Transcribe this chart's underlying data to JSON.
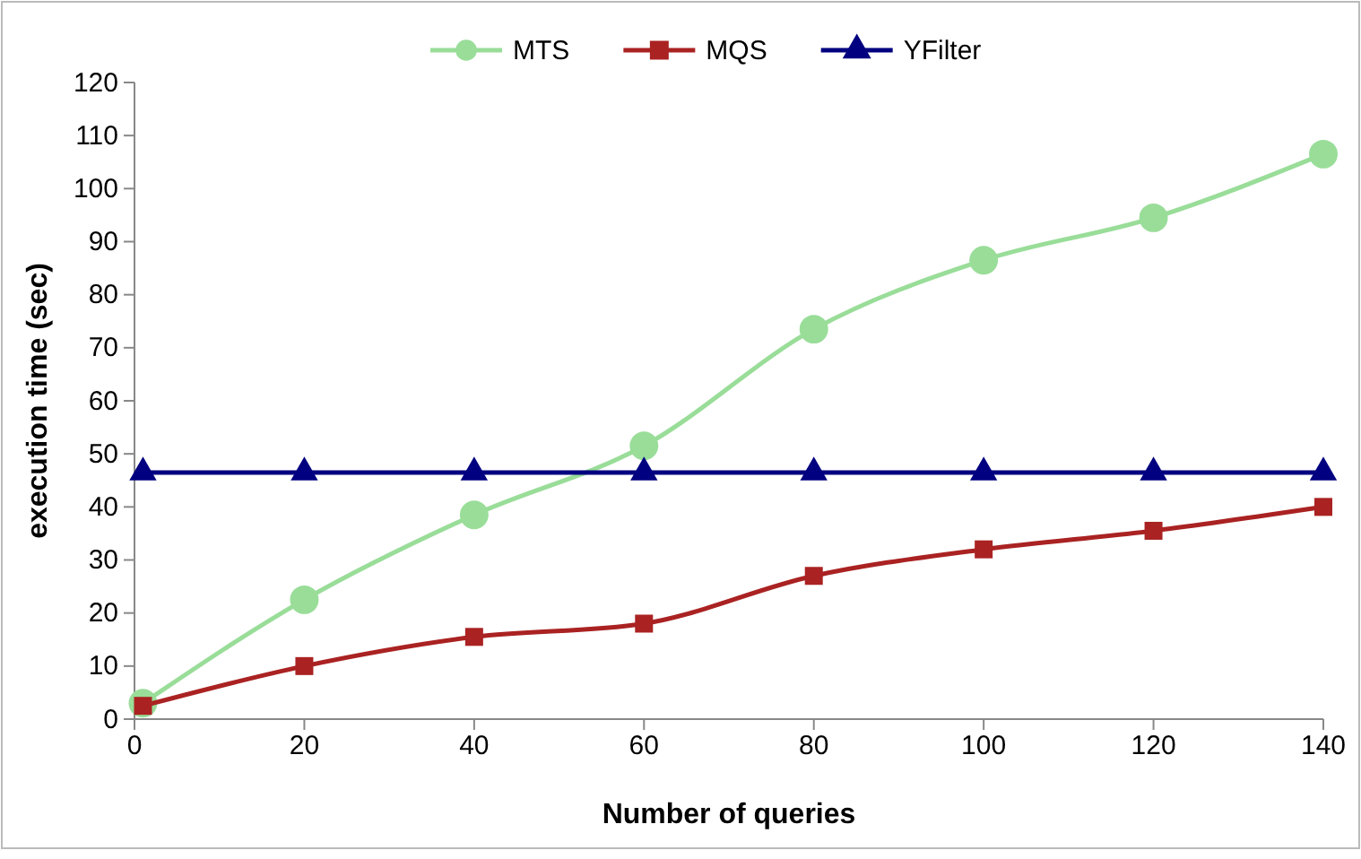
{
  "chart_data": {
    "type": "line",
    "xlabel": "Number of queries",
    "ylabel": "execution time (sec)",
    "x": [
      1,
      20,
      40,
      60,
      80,
      100,
      120,
      140
    ],
    "xlim": [
      0,
      140
    ],
    "xticks": [
      0,
      20,
      40,
      60,
      80,
      100,
      120,
      140
    ],
    "ylim": [
      0,
      120
    ],
    "yticks": [
      0,
      10,
      20,
      30,
      40,
      50,
      60,
      70,
      80,
      90,
      100,
      110,
      120
    ],
    "grid": false,
    "legend": "top",
    "line_style": "solid",
    "series": [
      {
        "name": "MTS",
        "color": "#99dd99",
        "marker": "circle",
        "values": [
          3,
          22.5,
          38.5,
          51.5,
          73.5,
          86.5,
          94.5,
          106.5
        ]
      },
      {
        "name": "MQS",
        "color": "#aa2222",
        "marker": "square",
        "values": [
          2.5,
          10,
          15.5,
          18,
          27,
          32,
          35.5,
          40
        ]
      },
      {
        "name": "YFilter",
        "color": "#000080",
        "marker": "triangle",
        "values": [
          46.5,
          46.5,
          46.5,
          46.5,
          46.5,
          46.5,
          46.5,
          46.5
        ]
      }
    ]
  }
}
